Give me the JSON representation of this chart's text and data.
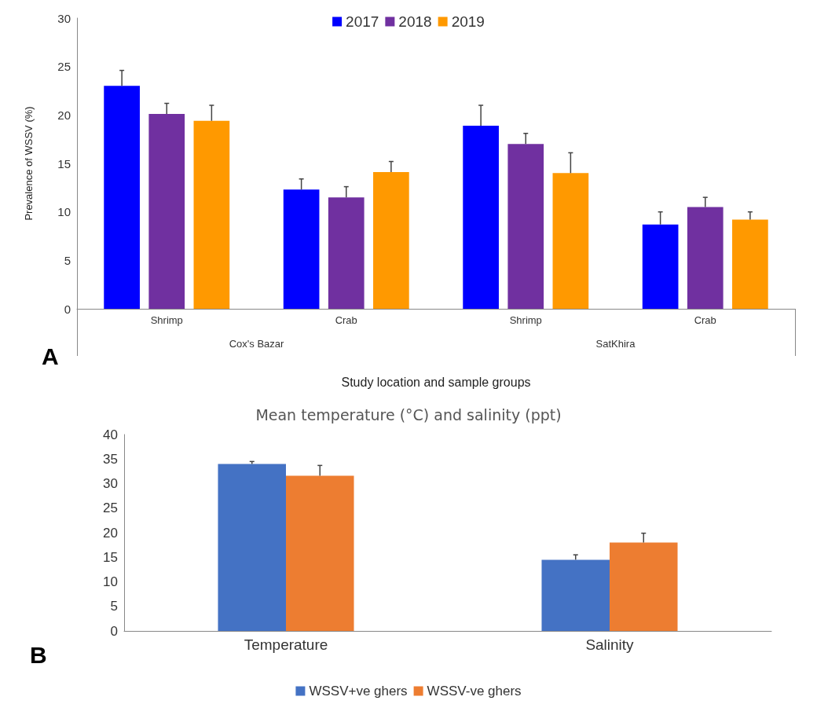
{
  "chart_data": [
    {
      "type": "bar",
      "ylabel": "Prevalence of WSSV (%)",
      "xlabel": "Study location and sample groups",
      "categories": [
        "Shrimp",
        "Crab",
        "Shrimp",
        "Crab"
      ],
      "series": [
        {
          "name": "2017",
          "color": "#0000ff",
          "values": [
            23.0,
            12.3,
            18.9,
            8.7
          ],
          "errors": [
            [
              23.0,
              24.6
            ],
            [
              12.3,
              13.4
            ],
            [
              18.9,
              21.0
            ],
            [
              8.7,
              10.0
            ]
          ]
        },
        {
          "name": "2018",
          "color": "#7030a0",
          "values": [
            20.1,
            11.5,
            17.0,
            10.5
          ],
          "errors": [
            [
              20.1,
              21.2
            ],
            [
              11.5,
              12.6
            ],
            [
              17.0,
              18.1
            ],
            [
              10.5,
              11.5
            ]
          ]
        },
        {
          "name": "2019",
          "color": "#ff9900",
          "values": [
            19.4,
            14.1,
            14.0,
            9.2
          ],
          "errors": [
            [
              19.4,
              21.0
            ],
            [
              14.1,
              15.2
            ],
            [
              14.0,
              16.1
            ],
            [
              9.2,
              10.0
            ]
          ]
        }
      ],
      "ylim": [
        0,
        30
      ],
      "yticks": [
        0,
        5,
        10,
        15,
        20,
        25,
        30
      ],
      "grid": false,
      "legend": "top",
      "annotations": [
        "A",
        "Cox's Bazar",
        "SatKhira"
      ]
    },
    {
      "type": "bar",
      "title": "Mean temperature (°C) and salinity (ppt)",
      "categories": [
        "Temperature",
        "Salinity"
      ],
      "series": [
        {
          "name": "WSSV+ve ghers",
          "color": "#4472c4",
          "values": [
            34.0,
            14.5
          ],
          "errors": [
            [
              34.0,
              34.5
            ],
            [
              14.5,
              15.5
            ]
          ]
        },
        {
          "name": "WSSV-ve ghers",
          "color": "#ed7d31",
          "values": [
            31.6,
            18.0
          ],
          "errors": [
            [
              31.6,
              33.7
            ],
            [
              18.0,
              19.9
            ]
          ]
        }
      ],
      "ylim": [
        0,
        40
      ],
      "yticks": [
        0,
        5,
        10,
        15,
        20,
        25,
        30,
        35,
        40
      ],
      "grid": false,
      "legend": "bottom",
      "annotations": [
        "B"
      ]
    }
  ]
}
